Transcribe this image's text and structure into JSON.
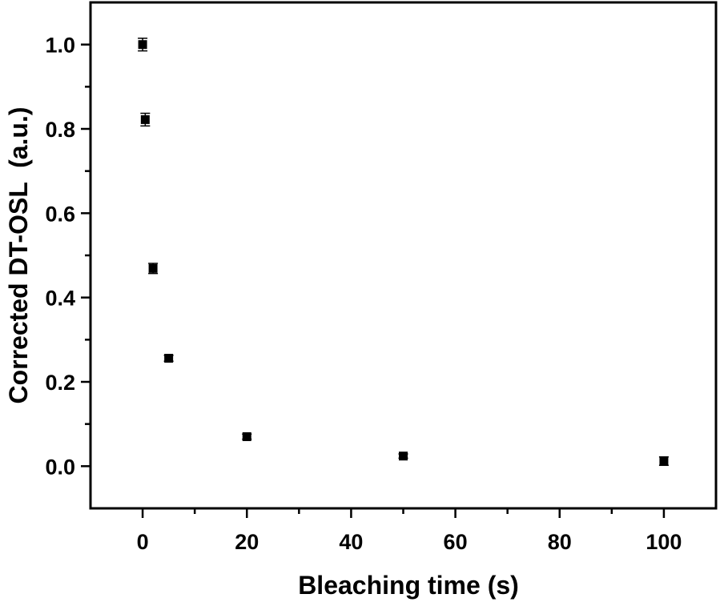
{
  "chart_data": {
    "type": "scatter",
    "title": "",
    "xlabel": "Bleaching time (s)",
    "ylabel": "Corrected DT-OSL  (a.u.)",
    "xlim": [
      -10,
      110
    ],
    "ylim": [
      -0.1,
      1.1
    ],
    "xticks": [
      0,
      20,
      40,
      60,
      80,
      100
    ],
    "xtick_labels": [
      "0",
      "20",
      "40",
      "60",
      "80",
      "100"
    ],
    "yticks": [
      0.0,
      0.2,
      0.4,
      0.6,
      0.8,
      1.0
    ],
    "ytick_labels": [
      "0.0",
      "0.2",
      "0.4",
      "0.6",
      "0.8",
      "1.0"
    ],
    "grid": false,
    "marker": "square",
    "color": "#000000",
    "series": [
      {
        "x": [
          0,
          0.5,
          2,
          5,
          20,
          50,
          100
        ],
        "y": [
          1.0,
          0.822,
          0.469,
          0.256,
          0.07,
          0.024,
          0.012
        ],
        "yerr": [
          0.015,
          0.015,
          0.012,
          0.007,
          0.006,
          0.005,
          0.01
        ]
      }
    ]
  }
}
